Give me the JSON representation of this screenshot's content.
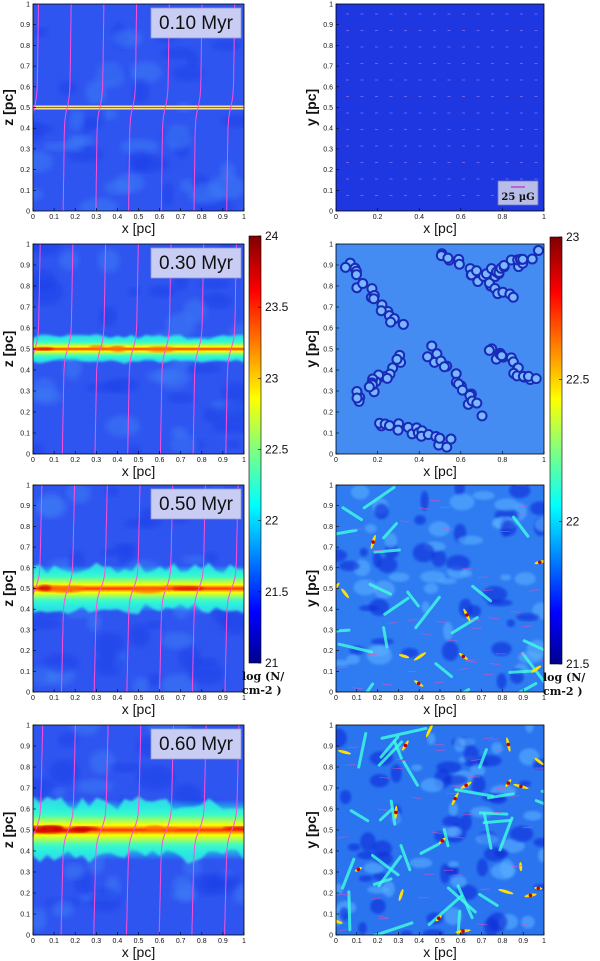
{
  "chart_data": [
    {
      "type": "heatmap",
      "panel": "edge-on",
      "time_label": "0.10 Myr",
      "xlabel": "x [pc]",
      "ylabel": "z [pc]",
      "xlim": [
        0,
        1
      ],
      "ylim": [
        0,
        1
      ],
      "x_ticks": [
        "0",
        "0.1",
        "0.2",
        "0.3",
        "0.4",
        "0.5",
        "0.6",
        "0.7",
        "0.8",
        "0.9",
        "1"
      ],
      "y_ticks": [
        "0",
        "0.1",
        "0.2",
        "0.3",
        "0.4",
        "0.5",
        "0.6",
        "0.7",
        "0.8",
        "0.9",
        "1"
      ],
      "layer_half_width": 0.005
    },
    {
      "type": "heatmap",
      "panel": "face-on",
      "xlabel": "x [pc]",
      "ylabel": "y [pc]",
      "xlim": [
        0,
        1
      ],
      "ylim": [
        0,
        1
      ],
      "x_ticks": [
        "0",
        "0.2",
        "0.4",
        "0.6",
        "0.8",
        "1"
      ],
      "y_ticks": [
        "0",
        "0.1",
        "0.2",
        "0.3",
        "0.4",
        "0.5",
        "0.6",
        "0.7",
        "0.8",
        "0.9",
        "1"
      ],
      "scale_label": "25 μG"
    },
    {
      "type": "heatmap",
      "panel": "edge-on",
      "time_label": "0.30 Myr",
      "xlabel": "x [pc]",
      "ylabel": "z [pc]",
      "xlim": [
        0,
        1
      ],
      "ylim": [
        0,
        1
      ],
      "x_ticks": [
        "0",
        "0.1",
        "0.2",
        "0.3",
        "0.4",
        "0.5",
        "0.6",
        "0.7",
        "0.8",
        "0.9",
        "1"
      ],
      "y_ticks": [
        "0",
        "0.1",
        "0.2",
        "0.3",
        "0.4",
        "0.5",
        "0.6",
        "0.7",
        "0.8",
        "0.9",
        "1"
      ],
      "layer_half_width": 0.04
    },
    {
      "type": "heatmap",
      "panel": "face-on",
      "xlabel": "x [pc]",
      "ylabel": "y [pc]",
      "xlim": [
        0,
        1
      ],
      "ylim": [
        0,
        1
      ],
      "x_ticks": [
        "0",
        "0.2",
        "0.4",
        "0.6",
        "0.8",
        "1"
      ],
      "y_ticks": [
        "0",
        "0.1",
        "0.2",
        "0.3",
        "0.4",
        "0.5",
        "0.6",
        "0.7",
        "0.8",
        "0.9",
        "1"
      ]
    },
    {
      "type": "heatmap",
      "panel": "edge-on",
      "time_label": "0.50 Myr",
      "xlabel": "x [pc]",
      "ylabel": "z [pc]",
      "xlim": [
        0,
        1
      ],
      "ylim": [
        0,
        1
      ],
      "x_ticks": [
        "0",
        "0.1",
        "0.2",
        "0.3",
        "0.4",
        "0.5",
        "0.6",
        "0.7",
        "0.8",
        "0.9",
        "1"
      ],
      "y_ticks": [
        "0",
        "0.1",
        "0.2",
        "0.3",
        "0.4",
        "0.5",
        "0.6",
        "0.7",
        "0.8",
        "0.9",
        "1"
      ],
      "layer_half_width": 0.07
    },
    {
      "type": "heatmap",
      "panel": "face-on",
      "xlabel": "x [pc]",
      "ylabel": "y [pc]",
      "xlim": [
        0,
        1
      ],
      "ylim": [
        0,
        1
      ],
      "x_ticks": [
        "0",
        "0.1",
        "0.2",
        "0.3",
        "0.4",
        "0.5",
        "0.6",
        "0.7",
        "0.8",
        "0.9",
        "1"
      ],
      "y_ticks": [
        "0",
        "0.1",
        "0.2",
        "0.3",
        "0.4",
        "0.5",
        "0.6",
        "0.7",
        "0.8",
        "0.9",
        "1"
      ]
    },
    {
      "type": "heatmap",
      "panel": "edge-on",
      "time_label": "0.60 Myr",
      "xlabel": "x [pc]",
      "ylabel": "z [pc]",
      "xlim": [
        0,
        1
      ],
      "ylim": [
        0,
        1
      ],
      "x_ticks": [
        "0",
        "0.1",
        "0.2",
        "0.3",
        "0.4",
        "0.5",
        "0.6",
        "0.7",
        "0.8",
        "0.9",
        "1"
      ],
      "y_ticks": [
        "0",
        "0.1",
        "0.2",
        "0.3",
        "0.4",
        "0.5",
        "0.6",
        "0.7",
        "0.8",
        "0.9",
        "1"
      ],
      "layer_half_width": 0.09
    },
    {
      "type": "heatmap",
      "panel": "face-on",
      "xlabel": "x [pc]",
      "ylabel": "y [pc]",
      "xlim": [
        0,
        1
      ],
      "ylim": [
        0,
        1
      ],
      "x_ticks": [
        "0",
        "0.1",
        "0.2",
        "0.3",
        "0.4",
        "0.5",
        "0.6",
        "0.7",
        "0.8",
        "0.9",
        "1"
      ],
      "y_ticks": [
        "0",
        "0.1",
        "0.2",
        "0.3",
        "0.4",
        "0.5",
        "0.6",
        "0.7",
        "0.8",
        "0.9",
        "1"
      ]
    }
  ],
  "colorbars": [
    {
      "ticks": [
        "24",
        "23.5",
        "23",
        "22.5",
        "22",
        "21.5",
        "21"
      ],
      "range": [
        21,
        24
      ],
      "label_line1": "log (N/",
      "label_line2": "cm-2 )"
    },
    {
      "ticks": [
        "23",
        "22.5",
        "22",
        "21.5"
      ],
      "range": [
        21.5,
        23
      ],
      "label_line1": "log (N/",
      "label_line2": "cm-2 )"
    }
  ],
  "colors": {
    "field_lines": "#ff4fd8",
    "colormap": [
      "#00008f",
      "#0000ff",
      "#0080ff",
      "#00ffff",
      "#80ff80",
      "#ffff00",
      "#ff8000",
      "#ff0000",
      "#800000"
    ]
  }
}
